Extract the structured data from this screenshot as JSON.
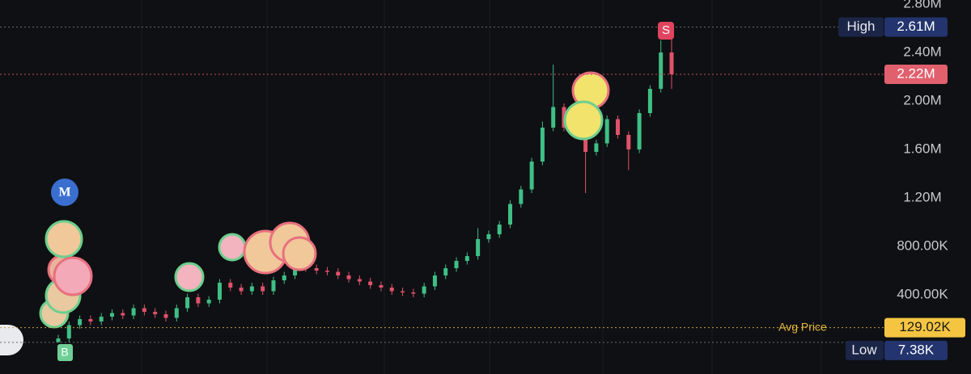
{
  "chart_data": {
    "type": "candlestick",
    "categories": [
      null,
      null,
      null,
      null,
      null,
      null,
      null,
      null,
      null,
      null,
      null,
      null,
      null,
      null,
      null,
      null,
      null,
      null,
      null,
      null,
      null,
      null,
      null,
      null,
      null,
      null,
      null,
      null,
      null,
      null,
      null,
      null,
      null,
      null,
      null,
      null,
      null,
      null,
      null,
      null,
      null,
      null,
      null,
      null,
      null,
      null,
      null,
      null,
      null,
      null,
      null,
      null,
      null,
      null,
      null,
      null,
      null,
      null
    ],
    "open": [
      10000,
      40000,
      150000,
      200000,
      180000,
      220000,
      250000,
      230000,
      290000,
      260000,
      240000,
      210000,
      290000,
      380000,
      330000,
      360000,
      500000,
      460000,
      430000,
      470000,
      430000,
      520000,
      560000,
      690000,
      620000,
      600000,
      590000,
      560000,
      530000,
      510000,
      480000,
      460000,
      430000,
      420000,
      410000,
      470000,
      560000,
      620000,
      680000,
      720000,
      860000,
      900000,
      980000,
      1150000,
      1270000,
      1500000,
      1780000,
      1950000,
      1780000,
      1720000,
      1580000,
      1650000,
      1850000,
      1720000,
      1600000,
      1900000,
      2100000,
      2400000
    ],
    "high": [
      70000,
      180000,
      230000,
      230000,
      250000,
      280000,
      280000,
      320000,
      320000,
      290000,
      270000,
      320000,
      410000,
      410000,
      390000,
      530000,
      530000,
      490000,
      500000,
      500000,
      550000,
      590000,
      720000,
      720000,
      650000,
      630000,
      620000,
      590000,
      560000,
      540000,
      510000,
      490000,
      460000,
      450000,
      500000,
      590000,
      650000,
      710000,
      750000,
      950000,
      930000,
      1010000,
      1180000,
      1300000,
      1530000,
      1830000,
      2300000,
      1980000,
      1810000,
      1750000,
      1680000,
      1880000,
      1880000,
      1750000,
      1930000,
      2130000,
      2500000,
      2610000
    ],
    "low": [
      7380,
      10000,
      120000,
      150000,
      150000,
      190000,
      200000,
      200000,
      230000,
      210000,
      180000,
      180000,
      260000,
      300000,
      300000,
      330000,
      430000,
      400000,
      400000,
      400000,
      400000,
      490000,
      530000,
      590000,
      570000,
      560000,
      530000,
      500000,
      480000,
      450000,
      430000,
      400000,
      390000,
      380000,
      380000,
      440000,
      530000,
      590000,
      650000,
      690000,
      830000,
      870000,
      950000,
      1120000,
      1240000,
      1470000,
      1750000,
      1750000,
      1690000,
      1240000,
      1550000,
      1620000,
      1690000,
      1430000,
      1570000,
      1870000,
      2070000,
      2100000
    ],
    "close": [
      40000,
      150000,
      200000,
      180000,
      220000,
      250000,
      230000,
      290000,
      260000,
      240000,
      210000,
      290000,
      380000,
      330000,
      360000,
      500000,
      460000,
      430000,
      470000,
      430000,
      520000,
      560000,
      690000,
      620000,
      600000,
      590000,
      560000,
      530000,
      510000,
      480000,
      460000,
      430000,
      420000,
      410000,
      470000,
      560000,
      620000,
      680000,
      720000,
      860000,
      900000,
      980000,
      1150000,
      1270000,
      1500000,
      1780000,
      1950000,
      1780000,
      1720000,
      1580000,
      1650000,
      1850000,
      1720000,
      1600000,
      1900000,
      2100000,
      2400000,
      2220000
    ],
    "up_color": "#3fbf86",
    "down_color": "#e0526a",
    "ylim": [
      -253000,
      2833000
    ],
    "yticks": [
      {
        "value": 400000,
        "label": "400.00K"
      },
      {
        "value": 800000,
        "label": "800.00K"
      },
      {
        "value": 1200000,
        "label": "1.20M"
      },
      {
        "value": 1600000,
        "label": "1.60M"
      },
      {
        "value": 2000000,
        "label": "2.00M"
      },
      {
        "value": 2400000,
        "label": "2.40M"
      },
      {
        "value": 2800000,
        "label": "2.80M"
      }
    ],
    "price_lines": {
      "high": {
        "name": "High",
        "value": 2610000,
        "label": "2.61M"
      },
      "current": {
        "value": 2220000,
        "label": "2.22M"
      },
      "average": {
        "name": "Avg Price",
        "value": 129020,
        "label": "129.02K"
      },
      "low": {
        "name": "Low",
        "value": 7380,
        "label": "7.38K"
      }
    },
    "annotations": [
      "M",
      "S",
      "B"
    ]
  }
}
